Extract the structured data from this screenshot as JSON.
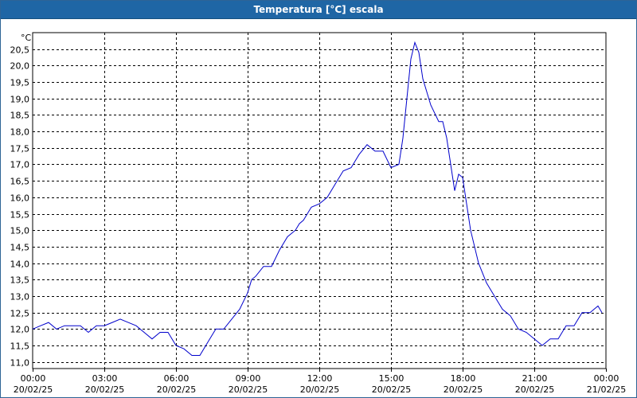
{
  "window": {
    "title": "Temperatura [°C] escala"
  },
  "chart_data": {
    "type": "line",
    "title": "Temperatura [°C] escala",
    "ylabel": "°C",
    "ylim": [
      10.8,
      21.0
    ],
    "xlim": [
      "2025-02-20 00:00",
      "2025-02-21 00:00"
    ],
    "grid": true,
    "line_color": "#0000cc",
    "y_ticks": [
      "11,0",
      "11,5",
      "12,0",
      "12,5",
      "13,0",
      "13,5",
      "14,0",
      "14,5",
      "15,0",
      "15,5",
      "16,0",
      "16,5",
      "17,0",
      "17,5",
      "18,0",
      "18,5",
      "19,0",
      "19,5",
      "20,0",
      "20,5"
    ],
    "y_tick_values": [
      11.0,
      11.5,
      12.0,
      12.5,
      13.0,
      13.5,
      14.0,
      14.5,
      15.0,
      15.5,
      16.0,
      16.5,
      17.0,
      17.5,
      18.0,
      18.5,
      19.0,
      19.5,
      20.0,
      20.5
    ],
    "x_ticks": [
      {
        "time": "00:00",
        "date": "20/02/25"
      },
      {
        "time": "03:00",
        "date": "20/02/25"
      },
      {
        "time": "06:00",
        "date": "20/02/25"
      },
      {
        "time": "09:00",
        "date": "20/02/25"
      },
      {
        "time": "12:00",
        "date": "20/02/25"
      },
      {
        "time": "15:00",
        "date": "20/02/25"
      },
      {
        "time": "18:00",
        "date": "20/02/25"
      },
      {
        "time": "21:00",
        "date": "20/02/25"
      },
      {
        "time": "00:00",
        "date": "21/02/25"
      }
    ],
    "x": [
      "2025-02-20 00:00",
      "2025-02-20 00:20",
      "2025-02-20 00:40",
      "2025-02-20 01:00",
      "2025-02-20 01:20",
      "2025-02-20 01:40",
      "2025-02-20 02:00",
      "2025-02-20 02:20",
      "2025-02-20 02:40",
      "2025-02-20 03:00",
      "2025-02-20 03:20",
      "2025-02-20 03:40",
      "2025-02-20 04:00",
      "2025-02-20 04:20",
      "2025-02-20 04:40",
      "2025-02-20 05:00",
      "2025-02-20 05:20",
      "2025-02-20 05:40",
      "2025-02-20 06:00",
      "2025-02-20 06:20",
      "2025-02-20 06:40",
      "2025-02-20 07:00",
      "2025-02-20 07:20",
      "2025-02-20 07:40",
      "2025-02-20 08:00",
      "2025-02-20 08:20",
      "2025-02-20 08:40",
      "2025-02-20 09:00",
      "2025-02-20 09:10",
      "2025-02-20 09:20",
      "2025-02-20 09:40",
      "2025-02-20 10:00",
      "2025-02-20 10:20",
      "2025-02-20 10:40",
      "2025-02-20 11:00",
      "2025-02-20 11:10",
      "2025-02-20 11:20",
      "2025-02-20 11:40",
      "2025-02-20 12:00",
      "2025-02-20 12:20",
      "2025-02-20 12:40",
      "2025-02-20 13:00",
      "2025-02-20 13:20",
      "2025-02-20 13:40",
      "2025-02-20 14:00",
      "2025-02-20 14:20",
      "2025-02-20 14:40",
      "2025-02-20 15:00",
      "2025-02-20 15:20",
      "2025-02-20 15:30",
      "2025-02-20 15:40",
      "2025-02-20 15:50",
      "2025-02-20 16:00",
      "2025-02-20 16:10",
      "2025-02-20 16:20",
      "2025-02-20 16:40",
      "2025-02-20 17:00",
      "2025-02-20 17:10",
      "2025-02-20 17:20",
      "2025-02-20 17:30",
      "2025-02-20 17:40",
      "2025-02-20 17:50",
      "2025-02-20 18:00",
      "2025-02-20 18:10",
      "2025-02-20 18:20",
      "2025-02-20 18:40",
      "2025-02-20 19:00",
      "2025-02-20 19:20",
      "2025-02-20 19:40",
      "2025-02-20 20:00",
      "2025-02-20 20:20",
      "2025-02-20 20:40",
      "2025-02-20 21:00",
      "2025-02-20 21:20",
      "2025-02-20 21:40",
      "2025-02-20 22:00",
      "2025-02-20 22:20",
      "2025-02-20 22:40",
      "2025-02-20 23:00",
      "2025-02-20 23:20",
      "2025-02-20 23:40",
      "2025-02-20 23:50"
    ],
    "series": [
      {
        "values": [
          12.0,
          12.1,
          12.2,
          12.0,
          12.1,
          12.1,
          12.1,
          11.9,
          12.1,
          12.1,
          12.2,
          12.3,
          12.2,
          12.1,
          11.9,
          11.7,
          11.9,
          11.9,
          11.5,
          11.4,
          11.2,
          11.2,
          11.6,
          12.0,
          12.0,
          12.3,
          12.6,
          13.1,
          13.5,
          13.6,
          13.9,
          13.9,
          14.4,
          14.8,
          15.0,
          15.2,
          15.3,
          15.7,
          15.8,
          16.0,
          16.4,
          16.8,
          16.9,
          17.3,
          17.6,
          17.4,
          17.4,
          16.9,
          17.0,
          17.8,
          19.0,
          20.2,
          20.7,
          20.4,
          19.6,
          18.8,
          18.3,
          18.3,
          17.8,
          17.0,
          16.2,
          16.7,
          16.6,
          15.8,
          15.0,
          14.0,
          13.4,
          13.0,
          12.6,
          12.4,
          12.0,
          11.9,
          11.7,
          11.5,
          11.7,
          11.7,
          12.1,
          12.1,
          12.5,
          12.5,
          12.7,
          12.5
        ]
      }
    ]
  }
}
